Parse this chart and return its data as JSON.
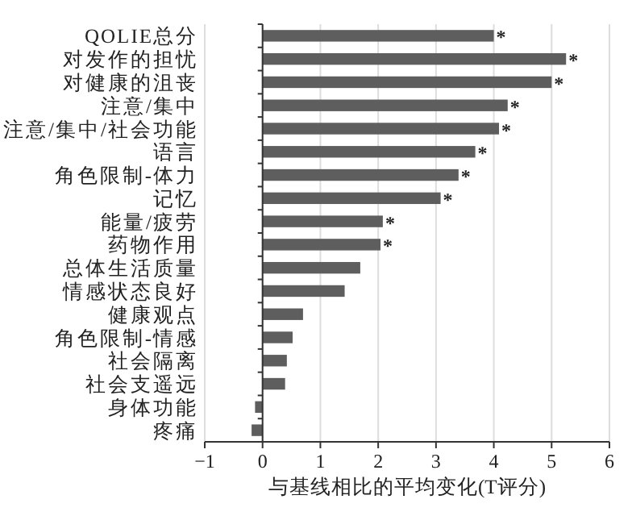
{
  "chart_data": {
    "type": "bar",
    "orientation": "horizontal",
    "xlabel": "与基线相比的平均变化(T评分)",
    "categories": [
      "QOLIE总分",
      "对发作的担忧",
      "对健康的沮丧",
      "注意/集中",
      "注意/集中/社会功能",
      "语言",
      "角色限制-体力",
      "记忆",
      "能量/疲劳",
      "药物作用",
      "总体生活质量",
      "情感状态良好",
      "健康观点",
      "角色限制-情感",
      "社会隔离",
      "社会支遥远",
      "身体功能",
      "疼痛"
    ],
    "values": [
      4.0,
      5.25,
      5.0,
      4.24,
      4.09,
      3.68,
      3.39,
      3.08,
      2.08,
      2.04,
      1.69,
      1.42,
      0.7,
      0.52,
      0.42,
      0.39,
      -0.13,
      -0.19
    ],
    "color": "#5e5e5e",
    "xlim": [
      -1,
      6
    ],
    "xticks": [
      {
        "value": -1,
        "label": "−1"
      },
      0,
      1,
      2,
      3,
      4,
      5,
      6
    ],
    "grid": "x",
    "annotations": [
      {
        "text": "*",
        "x": 4.0,
        "y": "QOLIE总分"
      },
      {
        "text": "*",
        "x": 5.25,
        "y": "对发作的担忧"
      },
      {
        "text": "*",
        "x": 5.0,
        "y": "对健康的沮丧"
      },
      {
        "text": "*",
        "x": 4.24,
        "y": "注意/集中"
      },
      {
        "text": "*",
        "x": 4.09,
        "y": "注意/集中/社会功能"
      },
      {
        "text": "*",
        "x": 3.68,
        "y": "语言"
      },
      {
        "text": "*",
        "x": 3.39,
        "y": "角色限制-体力"
      },
      {
        "text": "*",
        "x": 3.08,
        "y": "记忆"
      },
      {
        "text": "*",
        "x": 2.08,
        "y": "能量/疲劳"
      },
      {
        "text": "*",
        "x": 2.04,
        "y": "药物作用"
      }
    ]
  }
}
